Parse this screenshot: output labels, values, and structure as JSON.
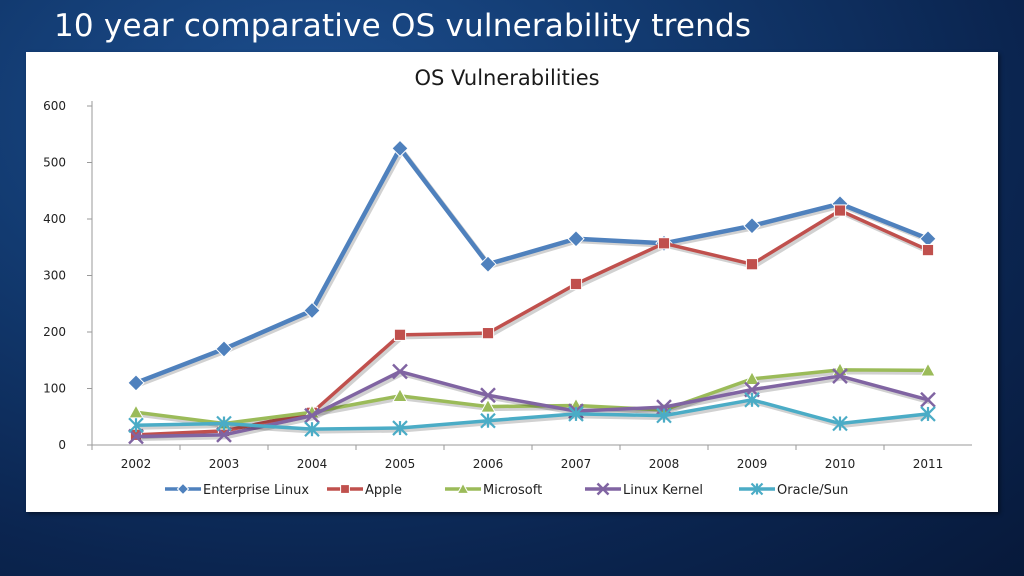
{
  "slide": {
    "title": "10 year comparative OS vulnerability trends"
  },
  "chart_data": {
    "type": "line",
    "title": "OS Vulnerabilities",
    "categories": [
      "2002",
      "2003",
      "2004",
      "2005",
      "2006",
      "2007",
      "2008",
      "2009",
      "2010",
      "2011"
    ],
    "ylim": [
      0,
      600
    ],
    "yticks": [
      0,
      100,
      200,
      300,
      400,
      500,
      600
    ],
    "grid": false,
    "legend_position": "bottom",
    "series": [
      {
        "name": "Enterprise Linux",
        "color": "#4f81bd",
        "marker": "diamond",
        "values": [
          110,
          170,
          238,
          525,
          320,
          365,
          357,
          388,
          427,
          365
        ]
      },
      {
        "name": "Apple",
        "color": "#c0504d",
        "marker": "square",
        "values": [
          18,
          25,
          57,
          195,
          198,
          285,
          357,
          320,
          415,
          345
        ]
      },
      {
        "name": "Microsoft",
        "color": "#9bbb59",
        "marker": "triangle",
        "values": [
          58,
          38,
          58,
          87,
          68,
          70,
          62,
          117,
          133,
          132
        ]
      },
      {
        "name": "Linux Kernel",
        "color": "#8064a2",
        "marker": "x",
        "values": [
          15,
          18,
          52,
          130,
          88,
          60,
          67,
          98,
          122,
          80
        ]
      },
      {
        "name": "Oracle/Sun",
        "color": "#4bacc6",
        "marker": "star",
        "values": [
          35,
          38,
          28,
          30,
          43,
          55,
          52,
          80,
          38,
          55
        ]
      }
    ]
  }
}
